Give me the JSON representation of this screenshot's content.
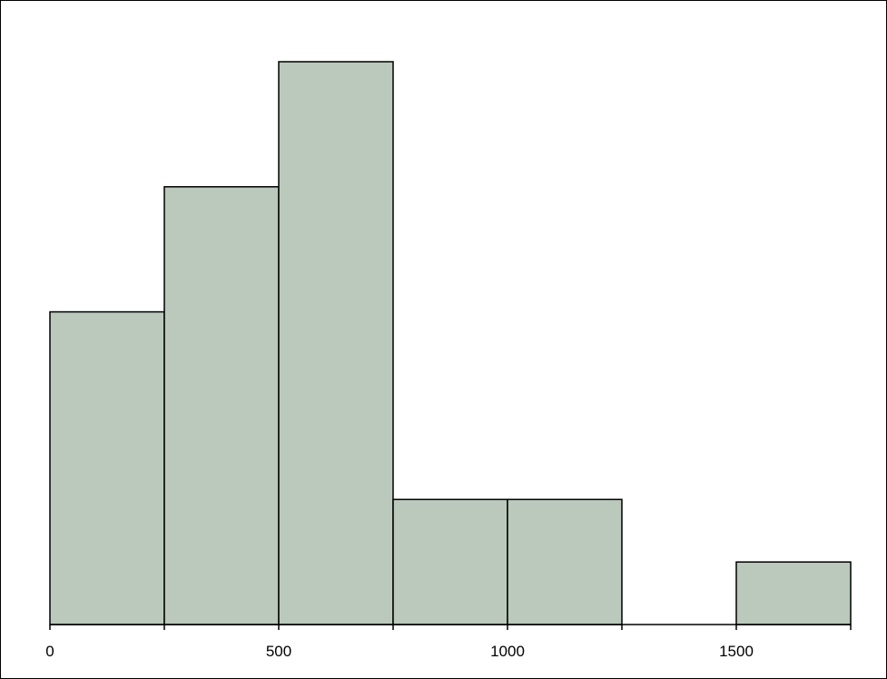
{
  "chart_data": {
    "type": "bar",
    "histogram": true,
    "bins": [
      {
        "start": 0,
        "end": 250,
        "value": 5
      },
      {
        "start": 250,
        "end": 500,
        "value": 7
      },
      {
        "start": 500,
        "end": 750,
        "value": 9
      },
      {
        "start": 750,
        "end": 1000,
        "value": 2
      },
      {
        "start": 1000,
        "end": 1250,
        "value": 2
      },
      {
        "start": 1250,
        "end": 1500,
        "value": 0
      },
      {
        "start": 1500,
        "end": 1750,
        "value": 1
      }
    ],
    "xlim": [
      0,
      1750
    ],
    "ylim": [
      0,
      9
    ],
    "xticks": [
      0,
      500,
      1000,
      1500
    ],
    "xtick_labels": [
      "0",
      "500",
      "1000",
      "1500"
    ],
    "minor_xticks": [
      250,
      750,
      1250,
      1750
    ],
    "title": "",
    "xlabel": "",
    "ylabel": "",
    "y_axis_visible": false,
    "grid": false,
    "bar_color": "#bac9bb",
    "edge_color": "#000000"
  }
}
